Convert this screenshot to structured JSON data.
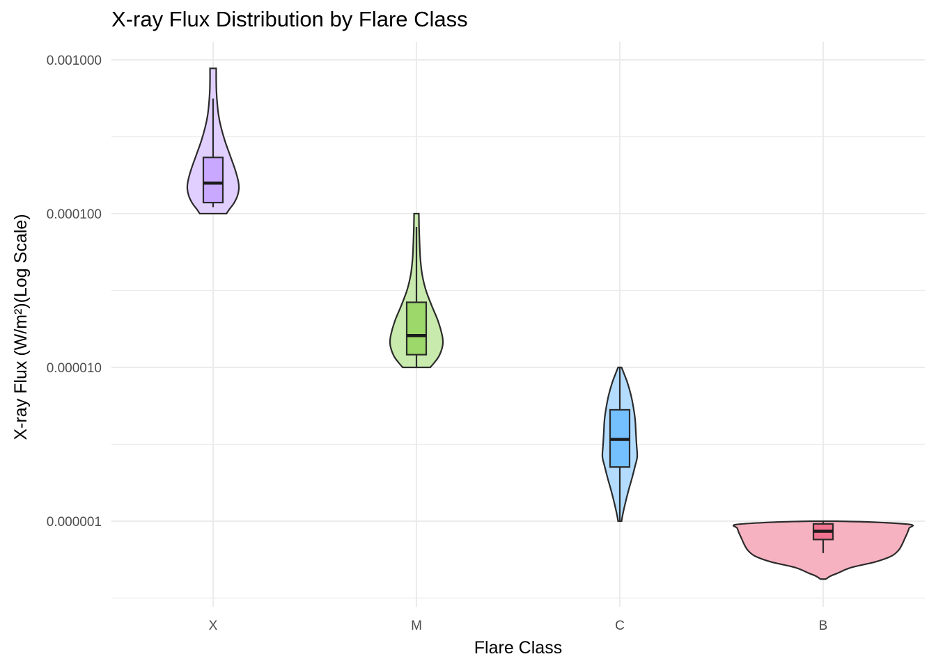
{
  "chart_data": {
    "type": "violin",
    "title": "X-ray Flux Distribution by Flare Class",
    "xlabel": "Flare Class",
    "ylabel": "X-ray Flux (W/m²)(Log Scale)",
    "y_scale": "log10",
    "ylim": [
      3.16e-07,
      0.00126
    ],
    "y_ticks": [
      1e-06,
      1e-05,
      0.0001,
      0.001
    ],
    "y_tick_labels": [
      "0.000001",
      "0.000010",
      "0.000100",
      "0.001000"
    ],
    "categories": [
      "X",
      "M",
      "C",
      "B"
    ],
    "series": [
      {
        "name": "X",
        "fill": "#C9A8FF",
        "violin_min": 0.0001,
        "violin_max": 0.00088,
        "box": {
          "whisker_low": 0.00011,
          "q1": 0.000118,
          "median": 0.000158,
          "q3": 0.000232,
          "whisker_high": 0.00056
        }
      },
      {
        "name": "M",
        "fill": "#9CD86A",
        "violin_min": 1e-05,
        "violin_max": 0.0001,
        "box": {
          "whisker_low": 1e-05,
          "q1": 1.21e-05,
          "median": 1.61e-05,
          "q3": 2.65e-05,
          "whisker_high": 8.2e-05
        }
      },
      {
        "name": "C",
        "fill": "#74C0FF",
        "violin_min": 1e-06,
        "violin_max": 1e-05,
        "box": {
          "whisker_low": 1e-06,
          "q1": 2.25e-06,
          "median": 3.4e-06,
          "q3": 5.3e-06,
          "whisker_high": 1e-05
        }
      },
      {
        "name": "B",
        "fill": "#F0738F",
        "violin_min": 4.2e-07,
        "violin_max": 1e-06,
        "box": {
          "whisker_low": 6.2e-07,
          "q1": 7.6e-07,
          "median": 8.6e-07,
          "q3": 9.6e-07,
          "whisker_high": 1e-06
        }
      }
    ],
    "grid": true,
    "legend": "none"
  }
}
